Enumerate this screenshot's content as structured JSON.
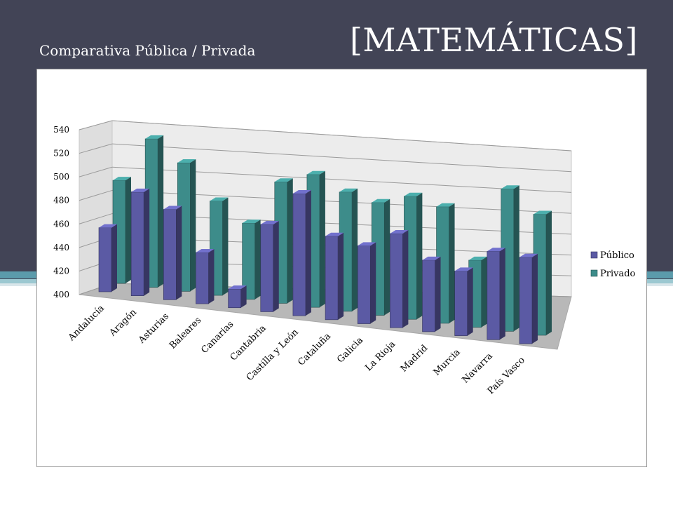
{
  "header": {
    "subtitle": "Comparativa Pública / Privada",
    "title": "[MATEMÁTICAS]"
  },
  "colors": {
    "background_dark": "#424456",
    "publico": "#5b5aa4",
    "privado": "#3d8c8a",
    "accent_stripe": "#5b9bab"
  },
  "chart_data": {
    "type": "bar",
    "subtype": "3d-clustered-column",
    "categories": [
      "Andalucía",
      "Aragón",
      "Asturias",
      "Baleares",
      "Canarias",
      "Cantabria",
      "Castilla y León",
      "Cataluña",
      "Galicia",
      "La Rioja",
      "Madrid",
      "Murcia",
      "Navarra",
      "País Vasco"
    ],
    "series": [
      {
        "name": "Público",
        "values": [
          456,
          490,
          478,
          444,
          416,
          474,
          503,
          470,
          465,
          478,
          459,
          453,
          472,
          470
        ]
      },
      {
        "name": "Privado",
        "values": [
          490,
          529,
          511,
          481,
          465,
          503,
          512,
          500,
          494,
          502,
          496,
          455,
          516,
          498
        ]
      }
    ],
    "yticks": [
      400,
      420,
      440,
      460,
      480,
      500,
      520,
      540
    ],
    "ylim": [
      400,
      540
    ],
    "grid": true,
    "legend_position": "right"
  }
}
